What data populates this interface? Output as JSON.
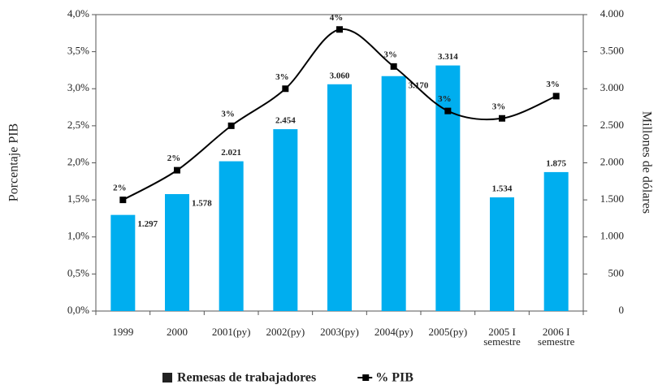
{
  "chart_data": {
    "type": "bar_line",
    "categories": [
      "1999",
      "2000",
      "2001(py)",
      "2002(py)",
      "2003(py)",
      "2004(py)",
      "2005(py)",
      "2005 I semestre",
      "2006 I semestre"
    ],
    "series": [
      {
        "name": "Remesas de trabajadores",
        "type": "bar",
        "axis": "y2",
        "color": "#00aeef",
        "values": [
          1297,
          1578,
          2021,
          2454,
          3060,
          3170,
          3314,
          1534,
          1875
        ],
        "value_labels": [
          "1.297",
          "1.578",
          "2.021",
          "2.454",
          "3.060",
          "3.170",
          "3.314",
          "1.534",
          "1.875"
        ]
      },
      {
        "name": "% PIB",
        "type": "line",
        "axis": "y",
        "color": "#000000",
        "values": [
          1.5,
          1.9,
          2.5,
          3.0,
          3.8,
          3.3,
          2.7,
          2.6,
          2.9
        ],
        "value_labels": [
          "2%",
          "2%",
          "3%",
          "3%",
          "4%",
          "3%",
          "3%",
          "3%",
          "3%"
        ]
      }
    ],
    "ylabel": "Porcentaje PIB",
    "y2label": "Millones de dólares",
    "ylim": [
      0,
      4.0
    ],
    "yticks": [
      {
        "value": 0,
        "label": "0,0%"
      },
      {
        "value": 0.5,
        "label": "0,5%"
      },
      {
        "value": 1.0,
        "label": "1,0%"
      },
      {
        "value": 1.5,
        "label": "1,5%"
      },
      {
        "value": 2.0,
        "label": "2,0%"
      },
      {
        "value": 2.5,
        "label": "2,5%"
      },
      {
        "value": 3.0,
        "label": "3,0%"
      },
      {
        "value": 3.5,
        "label": "3,5%"
      },
      {
        "value": 4.0,
        "label": "4,0%"
      }
    ],
    "y2lim": [
      0,
      4000
    ],
    "y2ticks": [
      0,
      500,
      {
        "value": 1000,
        "label": "1.000"
      },
      {
        "value": 1500,
        "label": "1.500"
      },
      {
        "value": 2000,
        "label": "2.000"
      },
      {
        "value": 2500,
        "label": "2.500"
      },
      {
        "value": 3000,
        "label": "3.000"
      },
      {
        "value": 3500,
        "label": "3.500"
      },
      {
        "value": 4000,
        "label": "4.000"
      }
    ],
    "legend": "bottom"
  }
}
